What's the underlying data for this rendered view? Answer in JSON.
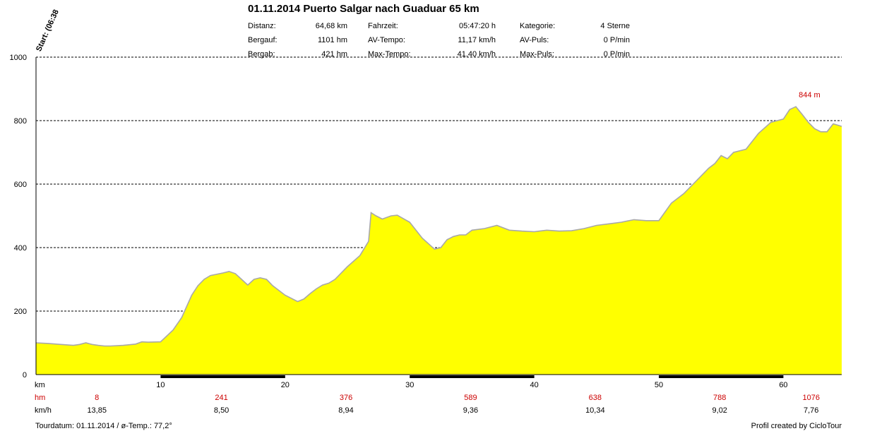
{
  "title": "01.11.2014 Puerto Salgar nach Guaduar 65 km",
  "start_label": "Start: (06:38",
  "stats": [
    {
      "label": "Distanz:",
      "value": "64,68 km"
    },
    {
      "label": "Bergauf:",
      "value": "1101 hm"
    },
    {
      "label": "Bergab:",
      "value": "421 hm"
    },
    {
      "label": "Fahrzeit:",
      "value": "05:47:20 h"
    },
    {
      "label": "AV-Tempo:",
      "value": "11,17 km/h"
    },
    {
      "label": "Max-Tempo:",
      "value": "41,40 km/h"
    },
    {
      "label": "Kategorie:",
      "value": "4 Sterne"
    },
    {
      "label": "AV-Puls:",
      "value": "0 P/min"
    },
    {
      "label": "Max-Puls:",
      "value": "0 P/min"
    }
  ],
  "footer": {
    "left": "Tourdatum: 01.11.2014  /  ø-Temp.: 77,2°",
    "right": "Profil created by CicloTour"
  },
  "colors": {
    "fill": "#ffff00",
    "outline": "#a8a8a8",
    "accent_red": "#cc0000",
    "grid": "#000000"
  },
  "chart_data": {
    "type": "area",
    "xlim": [
      0,
      64.68
    ],
    "ylim": [
      0,
      1000
    ],
    "yticks": [
      0,
      200,
      400,
      600,
      800,
      1000
    ],
    "xticks": [
      10,
      20,
      30,
      40,
      50,
      60
    ],
    "grid": true,
    "row_labels": {
      "km": "km",
      "hm": "hm",
      "kmh": "km/h"
    },
    "max_annotation": {
      "x": 61.0,
      "y": 844,
      "text": "844 m"
    },
    "segments": {
      "hm": [
        "8",
        "241",
        "376",
        "589",
        "638",
        "788",
        "1076"
      ],
      "kmh": [
        "13,85",
        "8,50",
        "8,94",
        "9,36",
        "10,34",
        "9,02",
        "7,76"
      ]
    },
    "x": [
      0,
      1,
      2,
      3,
      3.5,
      4,
      4.5,
      5,
      5.5,
      6,
      7,
      8,
      8.5,
      9,
      10,
      11,
      11.7,
      12.5,
      13,
      13.5,
      14,
      15,
      15.5,
      16,
      16.5,
      17,
      17.5,
      18,
      18.5,
      19,
      20,
      21,
      21.5,
      22,
      22.5,
      23,
      23.5,
      24,
      25,
      26,
      26.7,
      26.9,
      27.3,
      27.8,
      28.5,
      29,
      30,
      31,
      32,
      32.5,
      33,
      33.5,
      34,
      34.5,
      35,
      36,
      37,
      38,
      39,
      40,
      41,
      42,
      43,
      44,
      45,
      46,
      47,
      48,
      49,
      50,
      51,
      52,
      53,
      54,
      54.5,
      55,
      55.5,
      56,
      57,
      58,
      59,
      60,
      60.5,
      61,
      61.5,
      62,
      62.5,
      63,
      63.5,
      64,
      64.68
    ],
    "y": [
      100,
      98,
      95,
      92,
      95,
      100,
      95,
      92,
      90,
      90,
      92,
      96,
      103,
      102,
      103,
      140,
      180,
      250,
      280,
      300,
      312,
      320,
      325,
      318,
      300,
      282,
      300,
      305,
      300,
      280,
      250,
      230,
      238,
      255,
      270,
      282,
      288,
      300,
      340,
      375,
      420,
      510,
      500,
      490,
      500,
      502,
      480,
      430,
      395,
      400,
      425,
      435,
      440,
      440,
      455,
      460,
      470,
      455,
      452,
      450,
      455,
      452,
      453,
      460,
      470,
      475,
      480,
      488,
      485,
      485,
      540,
      570,
      610,
      650,
      665,
      690,
      680,
      700,
      710,
      760,
      795,
      805,
      835,
      844,
      820,
      795,
      775,
      765,
      765,
      790,
      782
    ]
  }
}
